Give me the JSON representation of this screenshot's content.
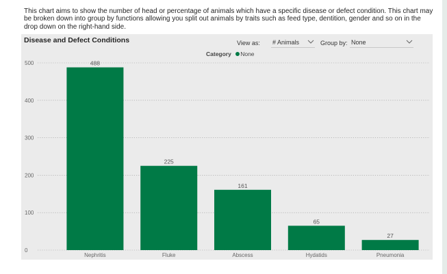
{
  "description": "This chart aims to show the number of head or percentage of animals which have a specific disease or defect condition. This chart may be broken down into group by functions allowing you split out animals by traits such as feed type, dentition, gender and so on in the drop down on the right-hand side.",
  "controls": {
    "view_as_label": "View as:",
    "view_as_value": "# Animals",
    "group_by_label": "Group by:",
    "group_by_value": "None"
  },
  "legend": {
    "title": "Category",
    "item": "None"
  },
  "colors": {
    "bar": "#007a46",
    "panel": "#ebebeb"
  },
  "chart_data": {
    "type": "bar",
    "title": "Disease and Defect Conditions",
    "categories": [
      "Nephritis",
      "Fluke",
      "Abscess",
      "Hydatids",
      "Pneumonia"
    ],
    "values": [
      488,
      225,
      161,
      65,
      27
    ],
    "ylim": [
      0,
      500
    ],
    "yticks": [
      0,
      100,
      200,
      300,
      400,
      500
    ],
    "xlabel": "",
    "ylabel": "",
    "grid": true,
    "legend_position": "top-center"
  }
}
